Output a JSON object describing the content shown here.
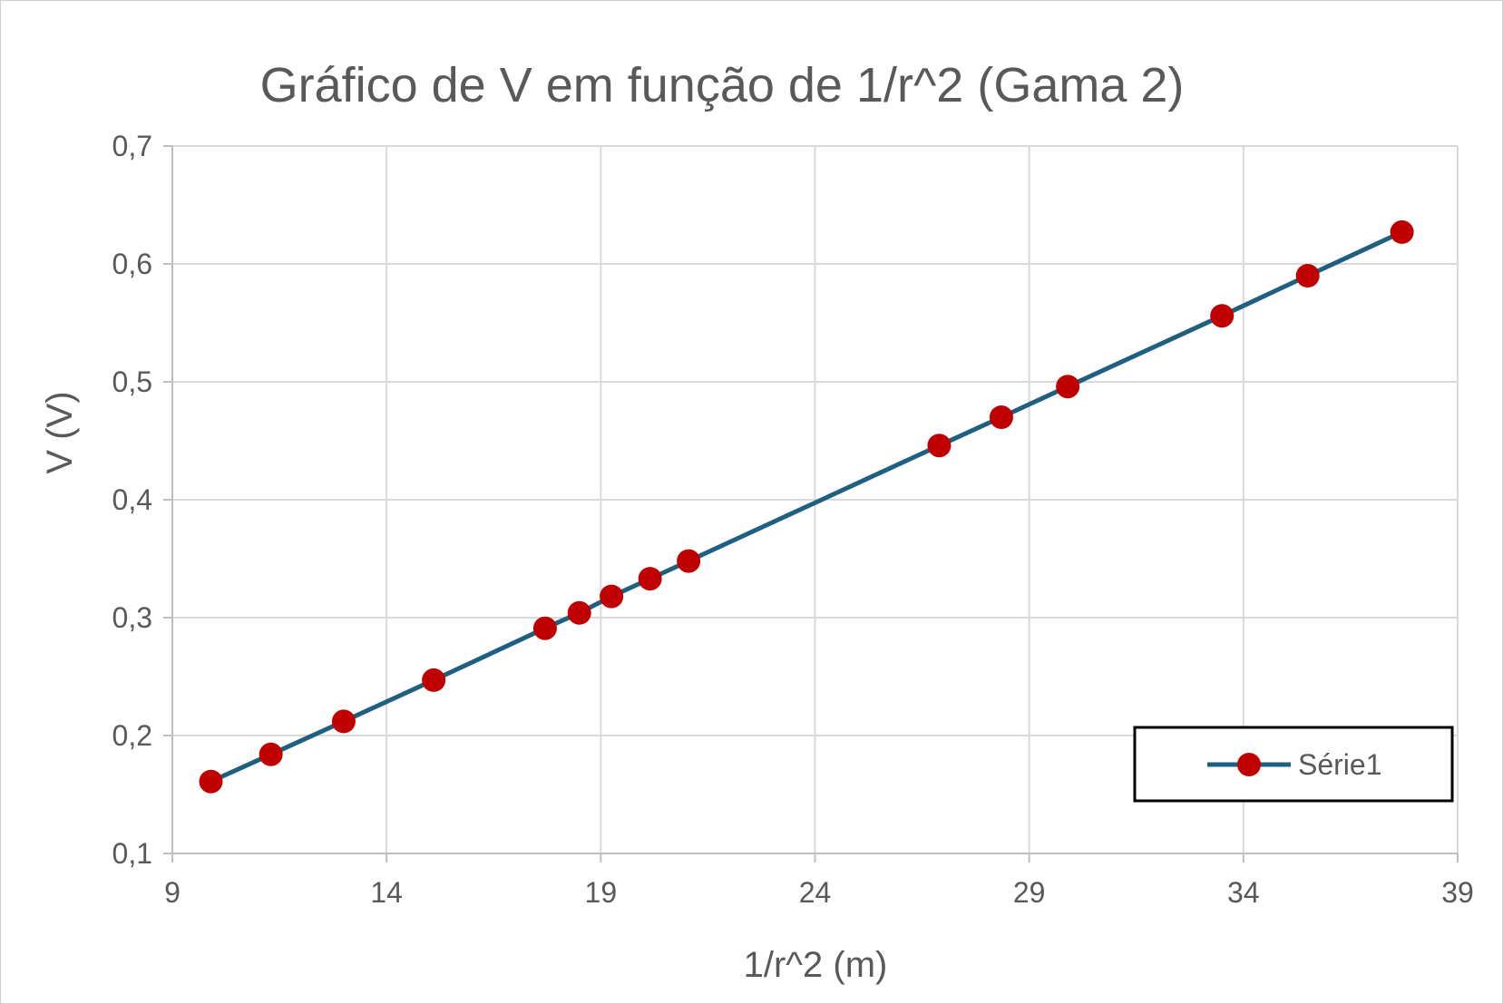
{
  "chart_data": {
    "type": "line",
    "title": "Gráfico de V em função de 1/r^2 (Gama 2)",
    "xlabel": "1/r^2 (m)",
    "ylabel": "V (V)",
    "xlim": [
      9,
      39
    ],
    "ylim": [
      0.1,
      0.7
    ],
    "x_ticks": [
      "9",
      "14",
      "19",
      "24",
      "29",
      "34",
      "39"
    ],
    "y_ticks": [
      "0,1",
      "0,2",
      "0,3",
      "0,4",
      "0,5",
      "0,6",
      "0,7"
    ],
    "x_tick_values": [
      9,
      14,
      19,
      24,
      29,
      34,
      39
    ],
    "y_tick_values": [
      0.1,
      0.2,
      0.3,
      0.4,
      0.5,
      0.6,
      0.7
    ],
    "grid": true,
    "legend_position": "bottom-right",
    "series": [
      {
        "name": "Série1",
        "line_color": "#1f5f7f",
        "marker_color": "#c00000",
        "x": [
          9.9,
          11.3,
          13.0,
          15.1,
          17.7,
          18.5,
          19.25,
          20.15,
          21.05,
          26.9,
          28.35,
          29.9,
          33.5,
          35.5,
          37.7
        ],
        "y": [
          0.161,
          0.184,
          0.212,
          0.247,
          0.291,
          0.304,
          0.318,
          0.333,
          0.348,
          0.446,
          0.47,
          0.496,
          0.556,
          0.59,
          0.627
        ]
      }
    ]
  },
  "colors": {
    "grid": "#d9d9d9",
    "axis": "#bfbfbf",
    "text": "#595959",
    "legend_border": "#000000"
  }
}
